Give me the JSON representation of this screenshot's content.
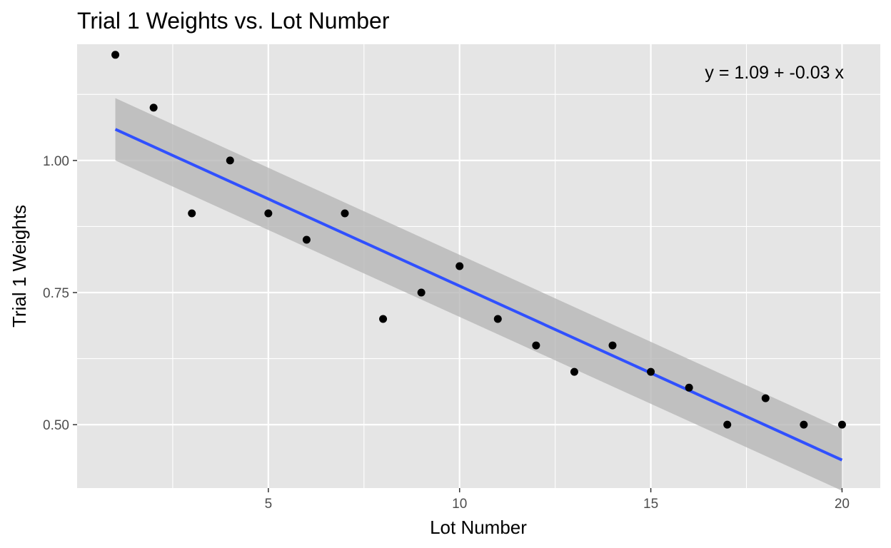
{
  "chart_data": {
    "type": "scatter",
    "title": "Trial 1 Weights vs. Lot Number",
    "xlabel": "Lot Number",
    "ylabel": "Trial 1 Weights",
    "xlim": [
      0,
      21
    ],
    "ylim": [
      0.38,
      1.22
    ],
    "x_major_ticks": [
      5,
      10,
      15,
      20
    ],
    "x_tick_labels": [
      "5",
      "10",
      "15",
      "20"
    ],
    "x_minor_ticks": [
      2.5,
      7.5,
      12.5,
      17.5
    ],
    "y_major_ticks": [
      0.5,
      0.75,
      1.0
    ],
    "y_tick_labels": [
      "0.50",
      "0.75",
      "1.00"
    ],
    "y_minor_ticks": [
      0.375,
      0.625,
      0.875,
      1.125
    ],
    "grid": true,
    "legend": "none",
    "points": {
      "x": [
        1,
        2,
        3,
        4,
        5,
        6,
        7,
        8,
        9,
        10,
        11,
        12,
        13,
        14,
        15,
        16,
        17,
        18,
        19,
        20
      ],
      "y": [
        1.2,
        1.1,
        0.9,
        1.0,
        0.9,
        0.85,
        0.9,
        0.7,
        0.75,
        0.8,
        0.7,
        0.65,
        0.6,
        0.65,
        0.6,
        0.57,
        0.5,
        0.55,
        0.5,
        0.5
      ]
    },
    "regression": {
      "intercept": 1.09,
      "slope": -0.03,
      "x_range": [
        1,
        20
      ],
      "fit": [
        1.059,
        0.433
      ],
      "ci_lower": [
        1.0,
        0.375
      ],
      "ci_upper": [
        1.118,
        0.492
      ]
    },
    "annotation": "y = 1.09 + -0.03 x",
    "colors": {
      "panel": "#e5e5e5",
      "grid": "#ffffff",
      "points": "#000000",
      "line": "#3050ff",
      "ribbon": "#b3b3b3"
    }
  }
}
